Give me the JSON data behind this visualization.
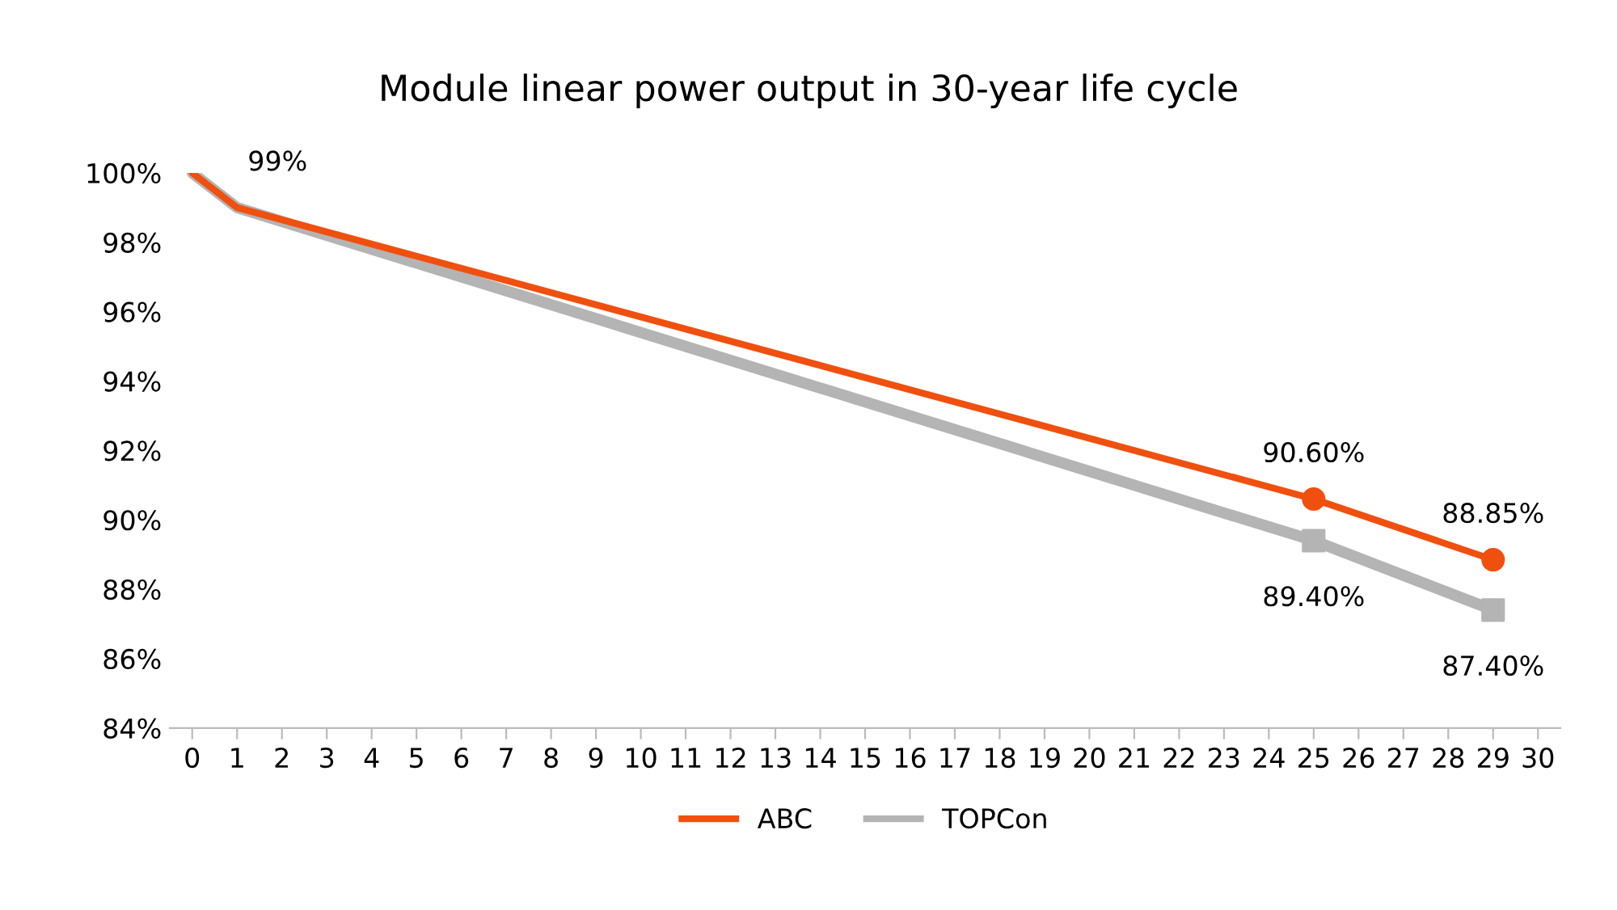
{
  "chart_data": {
    "type": "line",
    "title": "Module linear power output in 30-year life cycle",
    "series": [
      {
        "name": "ABC",
        "color": "#f0500f",
        "x": [
          0,
          1,
          25,
          29
        ],
        "values": [
          100,
          99,
          90.6,
          88.85
        ],
        "value_labels": [
          null,
          "99%",
          null,
          null
        ]
      },
      {
        "name": "TOPCon",
        "color": "#b4b4b4",
        "x": [
          0,
          1,
          25,
          29
        ],
        "values": [
          100,
          99,
          89.4,
          87.4
        ]
      },
      {
        "type": "scatter",
        "color": "#f0500f",
        "marker": "circle",
        "x": [
          25,
          29
        ],
        "values": [
          90.6,
          88.85
        ],
        "value_labels": [
          "90.60%",
          "88.85%"
        ]
      },
      {
        "type": "scatter",
        "color": "#b4b4b4",
        "marker": "square",
        "x": [
          25,
          29
        ],
        "values": [
          89.4,
          87.4
        ],
        "value_labels": [
          "89.40%",
          "87.40%"
        ]
      }
    ],
    "xlim": [
      -0.5,
      30.5
    ],
    "xticks": [
      0,
      1,
      2,
      3,
      4,
      5,
      6,
      7,
      8,
      9,
      10,
      11,
      12,
      13,
      14,
      15,
      16,
      17,
      18,
      19,
      20,
      21,
      22,
      23,
      24,
      25,
      26,
      27,
      28,
      29,
      30
    ],
    "ylim": [
      84,
      100
    ],
    "yticks": [
      {
        "value": 84,
        "label": "84%"
      },
      {
        "value": 86,
        "label": "86%"
      },
      {
        "value": 88,
        "label": "88%"
      },
      {
        "value": 90,
        "label": "90%"
      },
      {
        "value": 92,
        "label": "92%"
      },
      {
        "value": 94,
        "label": "94%"
      },
      {
        "value": 96,
        "label": "96%"
      },
      {
        "value": 98,
        "label": "98%"
      },
      {
        "value": 100,
        "label": "100%"
      }
    ],
    "grid": false,
    "legend": "bottom"
  }
}
